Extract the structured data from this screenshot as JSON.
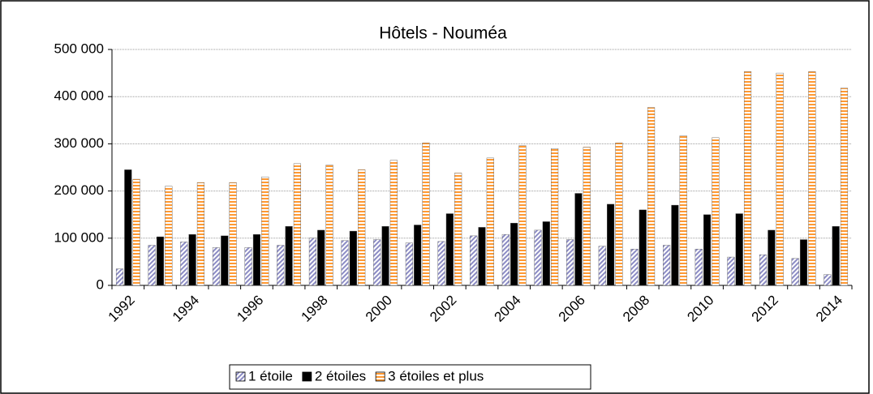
{
  "chart_data": {
    "type": "bar",
    "title": "Hôtels - Nouméa",
    "categories": [
      "1992",
      null,
      "1994",
      null,
      "1996",
      null,
      "1998",
      null,
      "2000",
      null,
      "2002",
      null,
      "2004",
      null,
      "2006",
      null,
      "2008",
      null,
      "2010",
      null,
      "2012",
      null,
      "2014"
    ],
    "series": [
      {
        "name": "1 étoile",
        "color": "#8c8cc4",
        "values": [
          35000,
          85000,
          92000,
          80000,
          80000,
          85000,
          100000,
          95000,
          97000,
          90000,
          93000,
          105000,
          108000,
          117000,
          97000,
          83000,
          77000,
          85000,
          77000,
          60000,
          65000,
          57000,
          23000
        ]
      },
      {
        "name": "2 étoiles",
        "color": "#000000",
        "values": [
          245000,
          103000,
          108000,
          105000,
          108000,
          125000,
          117000,
          115000,
          125000,
          128000,
          152000,
          123000,
          132000,
          135000,
          195000,
          172000,
          160000,
          170000,
          150000,
          152000,
          117000,
          97000,
          125000
        ]
      },
      {
        "name": "3 étoiles et plus",
        "color": "#ff9933",
        "values": [
          225000,
          210000,
          218000,
          218000,
          230000,
          258000,
          255000,
          245000,
          265000,
          302000,
          238000,
          270000,
          296000,
          290000,
          293000,
          302000,
          377000,
          317000,
          313000,
          453000,
          450000,
          453000,
          418000
        ]
      }
    ],
    "ylim": [
      0,
      500000
    ],
    "yticks": [
      {
        "value": 0,
        "label": "0"
      },
      {
        "value": 100000,
        "label": "100 000"
      },
      {
        "value": 200000,
        "label": "200 000"
      },
      {
        "value": 300000,
        "label": "300 000"
      },
      {
        "value": 400000,
        "label": "400 000"
      },
      {
        "value": 500000,
        "label": "500 000"
      }
    ],
    "grid": true
  }
}
